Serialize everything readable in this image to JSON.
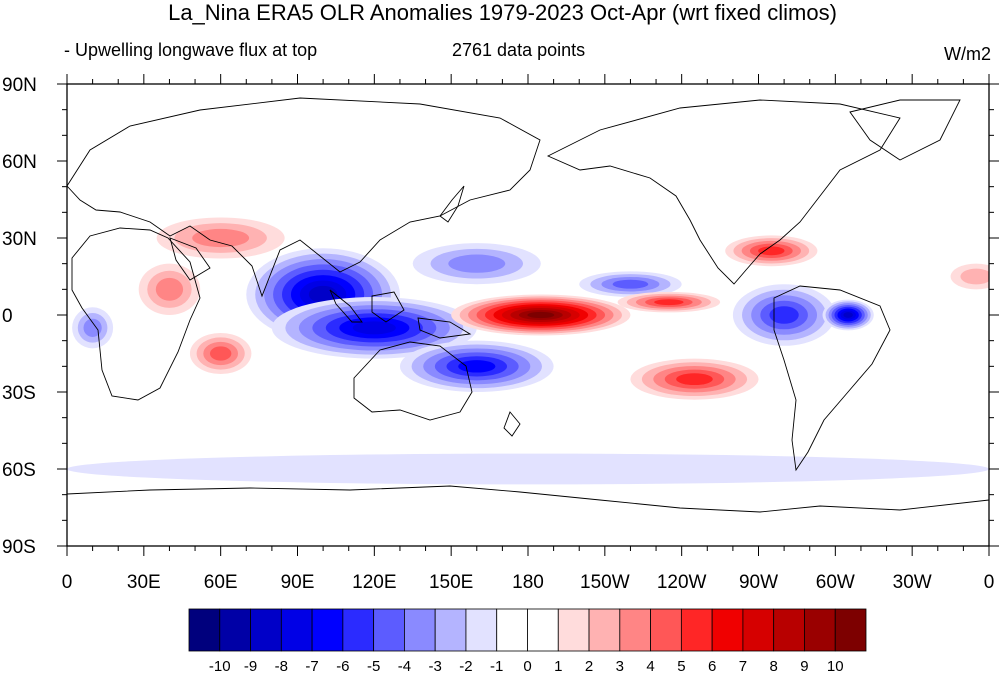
{
  "plot": {
    "title": "La_Nina ERA5 OLR Anomalies 1979-2023 Oct-Apr (wrt fixed climos)",
    "left_string": "- Upwelling longwave flux at top",
    "center_string": "2761 data points",
    "right_string": "W/m2"
  },
  "axes": {
    "lat_labels": [
      "90N",
      "60N",
      "30N",
      "0",
      "30S",
      "60S",
      "90S"
    ],
    "lat_values": [
      90,
      60,
      30,
      0,
      -30,
      -60,
      -90
    ],
    "lon_labels": [
      "0",
      "30E",
      "60E",
      "90E",
      "120E",
      "150E",
      "180",
      "150W",
      "120W",
      "90W",
      "60W",
      "30W",
      "0"
    ],
    "lon_values": [
      0,
      30,
      60,
      90,
      120,
      150,
      180,
      210,
      240,
      270,
      300,
      330,
      360
    ]
  },
  "colorbar": {
    "colors": [
      "#00007d",
      "#0000a6",
      "#0000c8",
      "#0000e6",
      "#0000ff",
      "#2b2bff",
      "#5c5cff",
      "#8a8aff",
      "#b4b4ff",
      "#e2e2ff",
      "#ffffff",
      "#ffffff",
      "#ffdcdc",
      "#ffb2b2",
      "#ff8585",
      "#ff5757",
      "#ff2626",
      "#f00000",
      "#d60000",
      "#b80000",
      "#9a0000",
      "#7d0000"
    ],
    "labels": [
      "-10",
      "-9",
      "-8",
      "-7",
      "-6",
      "-5",
      "-4",
      "-3",
      "-2",
      "-1",
      "0",
      "1",
      "2",
      "3",
      "4",
      "5",
      "6",
      "7",
      "8",
      "9",
      "10"
    ]
  },
  "anomaly_regions": [
    {
      "lon": 100,
      "lat": 8,
      "rx": 30,
      "ry": 18,
      "value": -8
    },
    {
      "lon": 120,
      "lat": -5,
      "rx": 40,
      "ry": 12,
      "value": -7
    },
    {
      "lon": 160,
      "lat": -20,
      "rx": 30,
      "ry": 10,
      "value": -6
    },
    {
      "lon": 160,
      "lat": 20,
      "rx": 25,
      "ry": 8,
      "value": -3
    },
    {
      "lon": 220,
      "lat": 12,
      "rx": 20,
      "ry": 5,
      "value": -4
    },
    {
      "lon": 280,
      "lat": 0,
      "rx": 20,
      "ry": 12,
      "value": -5
    },
    {
      "lon": 305,
      "lat": 0,
      "rx": 10,
      "ry": 6,
      "value": -8
    },
    {
      "lon": 185,
      "lat": 0,
      "rx": 35,
      "ry": 8,
      "value": 10
    },
    {
      "lon": 235,
      "lat": 5,
      "rx": 20,
      "ry": 4,
      "value": 5
    },
    {
      "lon": 245,
      "lat": -25,
      "rx": 25,
      "ry": 8,
      "value": 5
    },
    {
      "lon": 275,
      "lat": 25,
      "rx": 18,
      "ry": 6,
      "value": 5
    },
    {
      "lon": 60,
      "lat": -15,
      "rx": 12,
      "ry": 8,
      "value": 4
    },
    {
      "lon": 40,
      "lat": 10,
      "rx": 12,
      "ry": 10,
      "value": 3
    },
    {
      "lon": 60,
      "lat": 30,
      "rx": 25,
      "ry": 8,
      "value": 3
    },
    {
      "lon": 10,
      "lat": -5,
      "rx": 8,
      "ry": 8,
      "value": -3
    },
    {
      "lon": 355,
      "lat": 15,
      "rx": 10,
      "ry": 5,
      "value": 2
    },
    {
      "lon": 180,
      "lat": -60,
      "rx": 180,
      "ry": 6,
      "value": -1
    }
  ]
}
